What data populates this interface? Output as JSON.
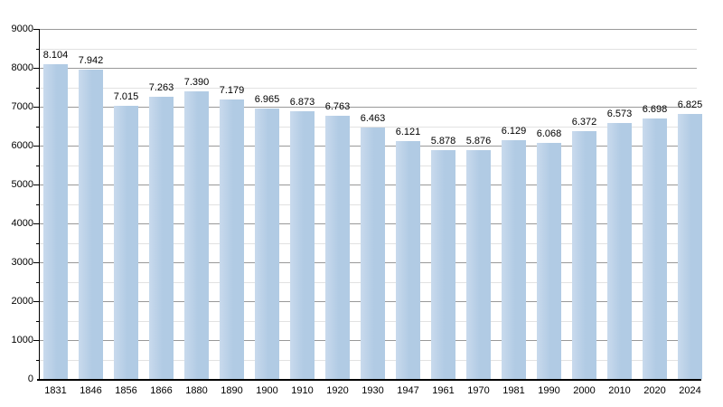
{
  "chart_data": {
    "type": "bar",
    "title": "",
    "xlabel": "",
    "ylabel": "",
    "categories": [
      "1831",
      "1846",
      "1856",
      "1866",
      "1880",
      "1890",
      "1900",
      "1910",
      "1920",
      "1930",
      "1947",
      "1961",
      "1970",
      "1981",
      "1990",
      "2000",
      "2010",
      "2020",
      "2024"
    ],
    "values": [
      8104,
      7942,
      7015,
      7263,
      7390,
      7179,
      6965,
      6873,
      6763,
      6463,
      6121,
      5878,
      5876,
      6129,
      6068,
      6372,
      6573,
      6698,
      6825
    ],
    "value_labels": [
      "8.104",
      "7.942",
      "7.015",
      "7.263",
      "7.390",
      "7.179",
      "6.965",
      "6.873",
      "6.763",
      "6.463",
      "6.121",
      "5.878",
      "5.876",
      "6.129",
      "6.068",
      "6.372",
      "6.573",
      "6.698",
      "6.825"
    ],
    "ylim": [
      0,
      9000
    ],
    "y_axis": {
      "tick_labels": [
        "0",
        "1000",
        "2000",
        "3000",
        "4000",
        "5000",
        "6000",
        "7000",
        "8000",
        "9000"
      ],
      "major_step": 1000,
      "minor_step": 500
    },
    "grid": "horizontal-major-and-minor",
    "legend": "none",
    "colors": {
      "bar": "#b1cbe4",
      "bar_light": "#c9daed",
      "major_grid": "#999999",
      "minor_grid": "#e2e2e2",
      "axis": "#000000",
      "text": "#000000",
      "background": "#ffffff"
    }
  }
}
